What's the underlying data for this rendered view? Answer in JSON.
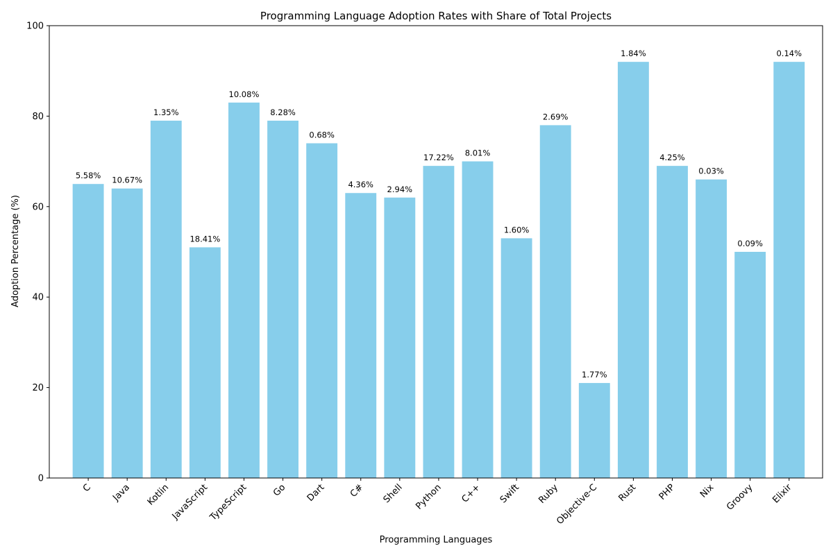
{
  "chart_data": {
    "type": "bar",
    "title": "Programming Language Adoption Rates with Share of Total Projects",
    "xlabel": "Programming Languages",
    "ylabel": "Adoption Percentage (%)",
    "ylim": [
      0,
      100
    ],
    "yticks": [
      0,
      20,
      40,
      60,
      80,
      100
    ],
    "grid": false,
    "bar_color": "#87ceeb",
    "categories": [
      "C",
      "Java",
      "Kotlin",
      "JavaScript",
      "TypeScript",
      "Go",
      "Dart",
      "C#",
      "Shell",
      "Python",
      "C++",
      "Swift",
      "Ruby",
      "Objective-C",
      "Rust",
      "PHP",
      "Nix",
      "Groovy",
      "Elixir"
    ],
    "values": [
      65,
      64,
      79,
      51,
      83,
      79,
      74,
      63,
      62,
      69,
      70,
      53,
      78,
      21,
      92,
      69,
      66,
      50,
      92
    ],
    "data_labels": [
      "5.58%",
      "10.67%",
      "1.35%",
      "18.41%",
      "10.08%",
      "8.28%",
      "0.68%",
      "4.36%",
      "2.94%",
      "17.22%",
      "8.01%",
      "1.60%",
      "2.69%",
      "1.77%",
      "1.84%",
      "4.25%",
      "0.03%",
      "0.09%",
      "0.14%"
    ]
  }
}
